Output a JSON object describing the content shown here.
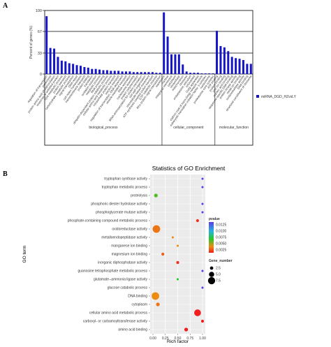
{
  "figure": {
    "panel_a": "A",
    "panel_b": "B"
  },
  "chart_data": [
    {
      "type": "bar",
      "ylabel": "Percent of genes (%)",
      "yticks": [
        "100",
        "67",
        "33",
        "0"
      ],
      "ylim": [
        0,
        100
      ],
      "series": [
        {
          "name": "miRNA_DGD_HZvsLY",
          "color": "#1515c8"
        }
      ],
      "groups": [
        {
          "name": "biological_process",
          "from": 0,
          "to": 30
        },
        {
          "name": "cellular_component",
          "from": 31,
          "to": 44
        },
        {
          "name": "molecular_function",
          "from": 45,
          "to": 54
        }
      ],
      "categories": [
        "regulation of transcription",
        "proteolysis",
        "protein amino acid phosphorylation",
        "response to unfolded protein",
        "lipid metabolic process",
        "protein transport",
        "carbohydrate metabolic process",
        "signal transduction",
        "DNA repair",
        "cell redox homeostasis",
        "transmembrane transport",
        "protein folding",
        "translation",
        "oxidation reduction",
        "metabolic process",
        "RNA processing",
        "ubiquitin-dependent protein catabolic process",
        "cellular amino acid metabolic process",
        "intracellular protein transport",
        "electron transport",
        "regulation of transcription, DNA-dependent",
        "vesicle-mediated transport",
        "DNA replication",
        "nucleosome assembly",
        "protein polymerization",
        "tRNA aminoacylation for protein translation",
        "cell wall organization",
        "microtubule-based movement",
        "ATP synthesis coupled proton transport",
        "GTP catabolic process",
        "Rho protein signal transduction",
        "membrane",
        "nucleus",
        "integral to membrane",
        "cytoplasm",
        "intracellular",
        "mitochondrion",
        "ribosome",
        "endoplasmic reticulum",
        "chloroplast",
        "Golgi apparatus",
        "clathrin coat of trans-Golgi network vesicle",
        "eukaryotic translation initiation factor 3 complex",
        "nucleosome",
        "proteasome core complex",
        "ATP binding",
        "protein binding",
        "zinc ion binding",
        "nucleic acid binding",
        "sequence-specific DNA binding",
        "protein kinase activity",
        "metal ion binding",
        "oxidoreductase activity",
        "DNA binding",
        "structural constituent of ribosome"
      ],
      "values": [
        91,
        41,
        40,
        27,
        21,
        20,
        17,
        16,
        14,
        13,
        11,
        10,
        8,
        8,
        7,
        6,
        6,
        5,
        5,
        5,
        4,
        4,
        4,
        3,
        3,
        3,
        3,
        3,
        3,
        2,
        2,
        97,
        59,
        31,
        31,
        31,
        15,
        4,
        2,
        2,
        2,
        1,
        1,
        1,
        1,
        68,
        44,
        42,
        36,
        27,
        25,
        24,
        22,
        16,
        16
      ]
    },
    {
      "type": "scatter",
      "title": "Statistics of GO Enrichment",
      "xlabel": "Rich factor",
      "ylabel": "GO term",
      "xlim": [
        0,
        1
      ],
      "xticks": [
        "0.00",
        "0.25",
        "0.50",
        "0.75",
        "1.00"
      ],
      "legend_pvalue": {
        "title": "pvalue",
        "ticks": [
          "0.0125",
          "0.0100",
          "0.0075",
          "0.0050",
          "0.0025"
        ]
      },
      "legend_size": {
        "title": "Gene_number",
        "ticks": [
          "2.5",
          "5.0",
          "7.5"
        ]
      },
      "points": [
        {
          "term": "tryptophan synthase activity",
          "rich": 1.0,
          "genes": 1,
          "pvalue": 0.0125
        },
        {
          "term": "tryptophan metabolic process",
          "rich": 1.0,
          "genes": 1,
          "pvalue": 0.0125
        },
        {
          "term": "proteolysis",
          "rich": 0.06,
          "genes": 3,
          "pvalue": 0.006
        },
        {
          "term": "phosphoric diester hydrolase activity",
          "rich": 1.0,
          "genes": 1,
          "pvalue": 0.0125
        },
        {
          "term": "phosphoglycerate mutase activity",
          "rich": 1.0,
          "genes": 1,
          "pvalue": 0.0125
        },
        {
          "term": "phosphate-containing compound metabolic process",
          "rich": 0.9,
          "genes": 2,
          "pvalue": 0.002
        },
        {
          "term": "oxidoreductase activity",
          "rich": 0.07,
          "genes": 8,
          "pvalue": 0.0035
        },
        {
          "term": "metalloendopeptidase activity",
          "rich": 0.4,
          "genes": 1,
          "pvalue": 0.004
        },
        {
          "term": "manganese ion binding",
          "rich": 0.5,
          "genes": 1,
          "pvalue": 0.004
        },
        {
          "term": "magnesium ion binding",
          "rich": 0.2,
          "genes": 2,
          "pvalue": 0.003
        },
        {
          "term": "inorganic diphosphatase activity",
          "rich": 0.5,
          "genes": 2,
          "pvalue": 0.0018
        },
        {
          "term": "guanosine tetraphosphate metabolic process",
          "rich": 1.0,
          "genes": 1,
          "pvalue": 0.0125
        },
        {
          "term": "glutamate--ammonia ligase activity",
          "rich": 0.5,
          "genes": 1,
          "pvalue": 0.0065
        },
        {
          "term": "glucose catabolic process",
          "rich": 1.0,
          "genes": 1,
          "pvalue": 0.0125
        },
        {
          "term": "DNA binding",
          "rich": 0.05,
          "genes": 8,
          "pvalue": 0.004
        },
        {
          "term": "cytoplasm",
          "rich": 0.1,
          "genes": 3,
          "pvalue": 0.0035
        },
        {
          "term": "cellular amino acid metabolic process",
          "rich": 0.9,
          "genes": 7,
          "pvalue": 0.0015
        },
        {
          "term": "carboxyl- or carbamoyltransferase activity",
          "rich": 1.0,
          "genes": 2,
          "pvalue": 0.0015
        },
        {
          "term": "amino acid binding",
          "rich": 0.67,
          "genes": 3,
          "pvalue": 0.0015
        }
      ]
    }
  ]
}
